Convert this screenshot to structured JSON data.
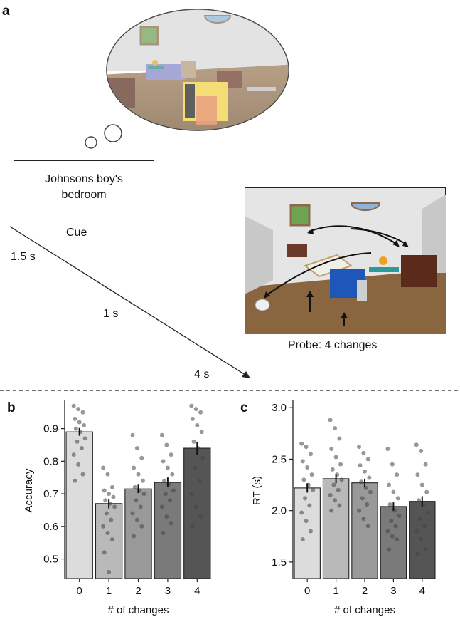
{
  "panel_a": {
    "letter": "a",
    "cue_line1": "Johnsons boy's",
    "cue_line2": "bedroom",
    "cue_label": "Cue",
    "t1": "1.5 s",
    "t2": "1 s",
    "t3": "4 s",
    "probe_caption": "Probe: 4 changes"
  },
  "panel_b": {
    "letter": "b"
  },
  "panel_c": {
    "letter": "c"
  },
  "chart_data": [
    {
      "type": "bar",
      "ylabel": "Accuracy",
      "xlabel": "# of changes",
      "categories": [
        "0",
        "1",
        "2",
        "3",
        "4"
      ],
      "values": [
        0.89,
        0.67,
        0.715,
        0.735,
        0.84
      ],
      "errors": [
        0.012,
        0.015,
        0.013,
        0.015,
        0.02
      ],
      "yticks": [
        0.5,
        0.6,
        0.7,
        0.8,
        0.9
      ],
      "ylim": [
        0.44,
        0.98
      ],
      "bar_colors": [
        "#dcdcdc",
        "#b9b9b9",
        "#999999",
        "#7a7a7a",
        "#555555"
      ],
      "points": [
        [
          0.97,
          0.96,
          0.95,
          0.93,
          0.92,
          0.91,
          0.9,
          0.89,
          0.87,
          0.86,
          0.84,
          0.82,
          0.79,
          0.76,
          0.74
        ],
        [
          0.78,
          0.76,
          0.72,
          0.71,
          0.7,
          0.69,
          0.68,
          0.67,
          0.66,
          0.64,
          0.62,
          0.6,
          0.58,
          0.56,
          0.52,
          0.46
        ],
        [
          0.88,
          0.84,
          0.81,
          0.78,
          0.76,
          0.74,
          0.72,
          0.71,
          0.7,
          0.68,
          0.66,
          0.64,
          0.62,
          0.6,
          0.57
        ],
        [
          0.88,
          0.85,
          0.82,
          0.8,
          0.78,
          0.76,
          0.74,
          0.73,
          0.71,
          0.7,
          0.68,
          0.66,
          0.63,
          0.61,
          0.58
        ],
        [
          0.97,
          0.96,
          0.95,
          0.93,
          0.91,
          0.89,
          0.86,
          0.84,
          0.81,
          0.78,
          0.74,
          0.7,
          0.66,
          0.63,
          0.6
        ]
      ]
    },
    {
      "type": "bar",
      "ylabel": "RT (s)",
      "xlabel": "# of changes",
      "categories": [
        "0",
        "1",
        "2",
        "3",
        "4"
      ],
      "values": [
        2.22,
        2.31,
        2.27,
        2.04,
        2.09
      ],
      "errors": [
        0.045,
        0.045,
        0.04,
        0.04,
        0.05
      ],
      "yticks": [
        1.5,
        2.0,
        2.5,
        3.0
      ],
      "ylim": [
        1.34,
        3.05
      ],
      "bar_colors": [
        "#dcdcdc",
        "#b9b9b9",
        "#999999",
        "#7a7a7a",
        "#555555"
      ],
      "points": [
        [
          2.65,
          2.62,
          2.55,
          2.48,
          2.42,
          2.35,
          2.3,
          2.25,
          2.2,
          2.12,
          2.05,
          1.98,
          1.9,
          1.8,
          1.72
        ],
        [
          2.88,
          2.8,
          2.7,
          2.6,
          2.52,
          2.45,
          2.4,
          2.35,
          2.3,
          2.25,
          2.2,
          2.15,
          2.1,
          2.05,
          2.0
        ],
        [
          2.62,
          2.56,
          2.5,
          2.44,
          2.38,
          2.32,
          2.28,
          2.22,
          2.18,
          2.12,
          2.06,
          2.0,
          1.92,
          1.85
        ],
        [
          2.6,
          2.45,
          2.35,
          2.25,
          2.18,
          2.12,
          2.06,
          2.0,
          1.95,
          1.9,
          1.85,
          1.8,
          1.75,
          1.72,
          1.62
        ],
        [
          2.64,
          2.58,
          2.45,
          2.35,
          2.25,
          2.18,
          2.1,
          2.05,
          1.98,
          1.92,
          1.85,
          1.8,
          1.72,
          1.62,
          1.58
        ]
      ]
    }
  ]
}
